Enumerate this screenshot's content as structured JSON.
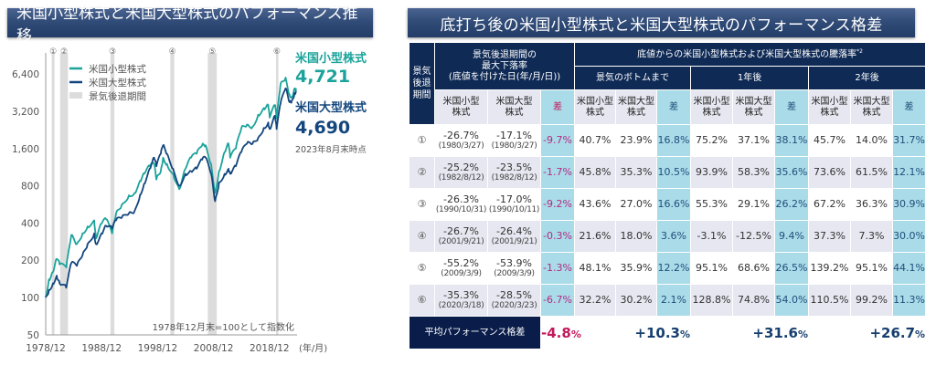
{
  "left_panel": {
    "title": "米国小型株式と米国大型株式のパフォーマンス推移"
  },
  "right_panel": {
    "title": "底打ち後の米国小型株式と米国大型株式のパフォーマンス格差"
  },
  "colors": {
    "small_cap": "#1aa39a",
    "large_cap": "#13467e",
    "recession": "#dcdcdc",
    "header_navy": "#0f2a55",
    "diff_cell": "#a9dbe9",
    "negative": "#c2185b"
  },
  "chart_data": {
    "type": "line",
    "title": "米国小型株式と米国大型株式のパフォーマンス推移",
    "xlabel": "(年/月)",
    "ylabel": "",
    "yscale": "log2",
    "ylim": [
      50,
      9000
    ],
    "xlim": [
      1978.92,
      2023.67
    ],
    "yticks": [
      50,
      100,
      200,
      400,
      800,
      1600,
      3200,
      6400
    ],
    "ytick_labels": [
      "50",
      "100",
      "200",
      "400",
      "800",
      "1,600",
      "3,200",
      "6,400"
    ],
    "xticks": [
      1978.92,
      1988.92,
      1998.92,
      2008.92,
      2018.92
    ],
    "xtick_labels": [
      "1978/12",
      "1988/12",
      "1998/12",
      "2008/12",
      "2018/12"
    ],
    "xtick_suffix": "(年/月)",
    "grid": false,
    "legend_position": "top-left",
    "legend": [
      {
        "name": "米国小型株式",
        "kind": "line",
        "color": "#1aa39a"
      },
      {
        "name": "米国大型株式",
        "kind": "line",
        "color": "#13467e"
      },
      {
        "name": "景気後退期間",
        "kind": "band",
        "color": "#dcdcdc"
      }
    ],
    "annotation": "1978年12月末=100として指数化",
    "recessions": [
      {
        "label": "①",
        "start": 1980.0,
        "end": 1980.5
      },
      {
        "label": "②",
        "start": 1981.5,
        "end": 1982.9
      },
      {
        "label": "③",
        "start": 1990.5,
        "end": 1991.2
      },
      {
        "label": "④",
        "start": 2001.2,
        "end": 2001.9
      },
      {
        "label": "⑤",
        "start": 2007.9,
        "end": 2009.5
      },
      {
        "label": "⑥",
        "start": 2020.1,
        "end": 2020.4
      }
    ],
    "series": [
      {
        "name": "米国小型株式",
        "end_label": "米国小型株式",
        "end_value_label": "4,721",
        "x": [
          1978.92,
          1979.5,
          1980.2,
          1980.9,
          1981.4,
          1982.6,
          1983.5,
          1984.5,
          1985.5,
          1986.4,
          1987.6,
          1987.9,
          1988.9,
          1989.7,
          1990.8,
          1991.5,
          1992.5,
          1993.8,
          1994.8,
          1995.8,
          1996.5,
          1997.5,
          1998.3,
          1998.7,
          1999.5,
          1999.9,
          2000.6,
          2001.7,
          2002.8,
          2003.9,
          2004.9,
          2005.9,
          2006.9,
          2007.5,
          2008.5,
          2009.2,
          2009.9,
          2010.9,
          2011.6,
          2011.9,
          2012.9,
          2013.9,
          2014.9,
          2015.9,
          2016.9,
          2017.9,
          2018.7,
          2018.95,
          2019.9,
          2020.2,
          2020.9,
          2021.8,
          2022.5,
          2022.9,
          2023.4,
          2023.67
        ],
        "values": [
          100,
          140,
          160,
          205,
          185,
          175,
          320,
          270,
          330,
          375,
          420,
          300,
          395,
          430,
          330,
          480,
          560,
          670,
          700,
          880,
          1000,
          1150,
          1200,
          900,
          1050,
          1350,
          1200,
          1000,
          750,
          1100,
          1350,
          1450,
          1700,
          1700,
          1200,
          700,
          1050,
          1500,
          1750,
          1350,
          1600,
          2350,
          2500,
          2400,
          3000,
          3400,
          3600,
          2850,
          3600,
          2800,
          5300,
          6000,
          4400,
          4200,
          4900,
          4721
        ]
      },
      {
        "name": "米国大型株式",
        "end_label": "米国大型株式",
        "end_value_label": "4,690",
        "x": [
          1978.92,
          1979.5,
          1980.2,
          1980.9,
          1981.4,
          1982.6,
          1983.5,
          1984.5,
          1985.5,
          1986.4,
          1987.6,
          1987.9,
          1988.9,
          1989.7,
          1990.8,
          1991.5,
          1992.5,
          1993.8,
          1994.8,
          1995.8,
          1996.5,
          1997.5,
          1998.3,
          1998.7,
          1999.5,
          1999.9,
          2000.6,
          2001.7,
          2002.8,
          2003.9,
          2004.9,
          2005.9,
          2006.9,
          2007.5,
          2008.5,
          2009.2,
          2009.9,
          2010.9,
          2011.6,
          2011.9,
          2012.9,
          2013.9,
          2014.9,
          2015.9,
          2016.9,
          2017.9,
          2018.7,
          2018.95,
          2019.9,
          2020.2,
          2020.9,
          2021.8,
          2022.5,
          2022.9,
          2023.4,
          2023.67
        ],
        "values": [
          100,
          115,
          130,
          150,
          130,
          120,
          190,
          180,
          220,
          270,
          330,
          270,
          330,
          380,
          360,
          420,
          440,
          480,
          500,
          680,
          830,
          1100,
          1350,
          1150,
          1450,
          1700,
          1450,
          1100,
          800,
          1000,
          1050,
          1100,
          1300,
          1350,
          1000,
          600,
          850,
          1000,
          1100,
          1000,
          1150,
          1500,
          1750,
          1750,
          1950,
          2350,
          2600,
          2300,
          2950,
          2300,
          3700,
          4900,
          3800,
          3900,
          4500,
          4690
        ]
      }
    ]
  },
  "chart_side": {
    "small_label": "米国小型株式",
    "small_value": "4,721",
    "large_label": "米国大型株式",
    "large_value": "4,690",
    "as_of": "2023年8月末時点"
  },
  "table": {
    "header": {
      "period": "景気後退期間",
      "drawdown_title_lines": [
        "景気後退期間の",
        "最大下落率",
        "(底値を付けた日(年/月/日))"
      ],
      "rebound_title": "底値からの米国小型株式および米国大型株式の騰落率",
      "rebound_note": "*2",
      "groups": [
        "景気のボトムまで",
        "1年後",
        "2年後"
      ],
      "small_line1": "米国小型",
      "small_line2": "株式",
      "large_line1": "米国大型",
      "large_line2": "株式",
      "diff": "差"
    },
    "rows": [
      {
        "period": "①",
        "small_dd": "-26.7%",
        "small_date": "(1980/3/27)",
        "large_dd": "-17.1%",
        "large_date": "(1980/3/27)",
        "dd_diff": "-9.7%",
        "bottom": [
          "40.7%",
          "23.9%",
          "16.8%"
        ],
        "y1": [
          "75.2%",
          "37.1%",
          "38.1%"
        ],
        "y2": [
          "45.7%",
          "14.0%",
          "31.7%"
        ]
      },
      {
        "period": "②",
        "small_dd": "-25.2%",
        "small_date": "(1982/8/12)",
        "large_dd": "-23.5%",
        "large_date": "(1982/8/12)",
        "dd_diff": "-1.7%",
        "bottom": [
          "45.8%",
          "35.3%",
          "10.5%"
        ],
        "y1": [
          "93.9%",
          "58.3%",
          "35.6%"
        ],
        "y2": [
          "73.6%",
          "61.5%",
          "12.1%"
        ]
      },
      {
        "period": "③",
        "small_dd": "-26.3%",
        "small_date": "(1990/10/31)",
        "large_dd": "-17.0%",
        "large_date": "(1990/10/11)",
        "dd_diff": "-9.2%",
        "bottom": [
          "43.6%",
          "27.0%",
          "16.6%"
        ],
        "y1": [
          "55.3%",
          "29.1%",
          "26.2%"
        ],
        "y2": [
          "67.2%",
          "36.3%",
          "30.9%"
        ]
      },
      {
        "period": "④",
        "small_dd": "-26.7%",
        "small_date": "(2001/9/21)",
        "large_dd": "-26.4%",
        "large_date": "(2001/9/21)",
        "dd_diff": "-0.3%",
        "bottom": [
          "21.6%",
          "18.0%",
          "3.6%"
        ],
        "y1": [
          "-3.1%",
          "-12.5%",
          "9.4%"
        ],
        "y2": [
          "37.3%",
          "7.3%",
          "30.0%"
        ]
      },
      {
        "period": "⑤",
        "small_dd": "-55.2%",
        "small_date": "(2009/3/9)",
        "large_dd": "-53.9%",
        "large_date": "(2009/3/9)",
        "dd_diff": "-1.3%",
        "bottom": [
          "48.1%",
          "35.9%",
          "12.2%"
        ],
        "y1": [
          "95.1%",
          "68.6%",
          "26.5%"
        ],
        "y2": [
          "139.2%",
          "95.1%",
          "44.1%"
        ]
      },
      {
        "period": "⑥",
        "small_dd": "-35.3%",
        "small_date": "(2020/3/18)",
        "large_dd": "-28.5%",
        "large_date": "(2020/3/23)",
        "dd_diff": "-6.7%",
        "bottom": [
          "32.2%",
          "30.2%",
          "2.1%"
        ],
        "y1": [
          "128.8%",
          "74.8%",
          "54.0%"
        ],
        "y2": [
          "110.5%",
          "99.2%",
          "11.3%"
        ]
      }
    ],
    "average": {
      "label": "平均パフォーマンス格差",
      "dd_diff": "-4.8",
      "bottom_diff": "+10.3",
      "y1_diff": "+31.6",
      "y2_diff": "+26.7",
      "unit": "%"
    }
  }
}
